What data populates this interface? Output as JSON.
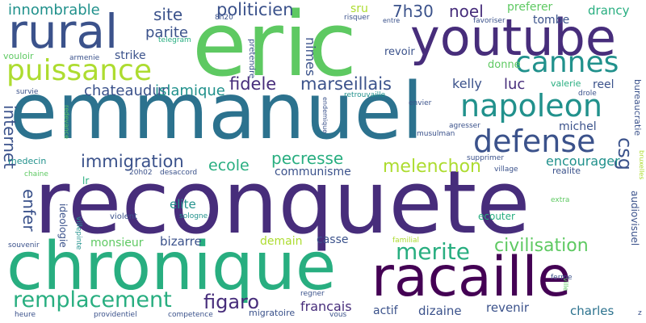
{
  "words": [
    "reconquete",
    "emmanuel",
    "eric",
    "chronique",
    "youtube",
    "racaille",
    "rural",
    "puissance",
    "napoleon",
    "cannes",
    "defense",
    "remplacement",
    "merite",
    "civilisation",
    "melenchon",
    "pecresse",
    "immigration",
    "fidele",
    "marseillais",
    "politicien",
    "innombrable",
    "figaro",
    "chateaudun",
    "islamique",
    "internet",
    "enfer",
    "csg",
    "noel",
    "7h30",
    "site",
    "parite",
    "strike",
    "luc",
    "kelly",
    "ecole",
    "communisme",
    "encourager",
    "michel",
    "drancy",
    "preferer",
    "tombe",
    "bizarre",
    "monsieur",
    "elite",
    "demain",
    "casse",
    "francais",
    "actif",
    "dizaine",
    "revenir",
    "charles",
    "revoir",
    "donne",
    "reel",
    "valerie",
    "nimes",
    "sru",
    "medecin",
    "ideologie",
    "lr",
    "ecouter",
    "realite",
    "supprimer",
    "village",
    "agresser",
    "musulman",
    "envier",
    "retrouvaille",
    "endemique",
    "drole",
    "extra",
    "bureaucratie",
    "audiovisuel",
    "bruxelles",
    "violent",
    "sologne",
    "desaccord",
    "20h02",
    "chaine",
    "villepinte",
    "souvenir",
    "heure",
    "providentiel",
    "competence",
    "migratoire",
    "vous",
    "familial",
    "regner",
    "ferme",
    "ville",
    "z",
    "vouloir",
    "armenie",
    "survie",
    "redevance",
    "pretendre",
    "telegram",
    "8h20",
    "risquer",
    "favoriser",
    "entre"
  ],
  "colors": {
    "dark_purple": "#440154",
    "indigo": "#472d7b",
    "slate_blue": "#3b528b",
    "steel_blue": "#2c728e",
    "teal": "#21918c",
    "sea_green": "#28ae80",
    "green": "#5ec962",
    "lime": "#addc30",
    "yellow": "#fde725"
  }
}
